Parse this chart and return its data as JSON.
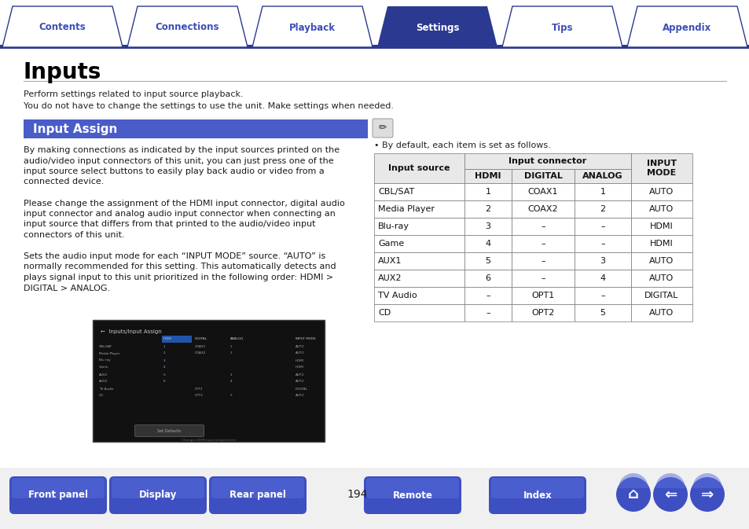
{
  "bg_color": "#ffffff",
  "tab_labels": [
    "Contents",
    "Connections",
    "Playback",
    "Settings",
    "Tips",
    "Appendix"
  ],
  "active_tab": 3,
  "tab_bar_color": "#2b3990",
  "tab_active_color": "#2b3990",
  "tab_inactive_color": "#ffffff",
  "tab_text_active": "#ffffff",
  "tab_text_inactive": "#3d4db7",
  "title": "Inputs",
  "section_title": "Input Assign",
  "section_bg": "#4a5cc7",
  "section_text_color": "#ffffff",
  "note_text": "• By default, each item is set as follows.",
  "table_data": [
    [
      "CBL/SAT",
      "1",
      "COAX1",
      "1",
      "AUTO"
    ],
    [
      "Media Player",
      "2",
      "COAX2",
      "2",
      "AUTO"
    ],
    [
      "Blu-ray",
      "3",
      "–",
      "–",
      "HDMI"
    ],
    [
      "Game",
      "4",
      "–",
      "–",
      "HDMI"
    ],
    [
      "AUX1",
      "5",
      "–",
      "3",
      "AUTO"
    ],
    [
      "AUX2",
      "6",
      "–",
      "4",
      "AUTO"
    ],
    [
      "TV Audio",
      "–",
      "OPT1",
      "–",
      "DIGITAL"
    ],
    [
      "CD",
      "–",
      "OPT2",
      "5",
      "AUTO"
    ]
  ],
  "bottom_buttons": [
    "Front panel",
    "Display",
    "Rear panel",
    "Remote",
    "Index"
  ],
  "page_number": "194",
  "button_color": "#3d4fc1",
  "button_text_color": "#ffffff"
}
